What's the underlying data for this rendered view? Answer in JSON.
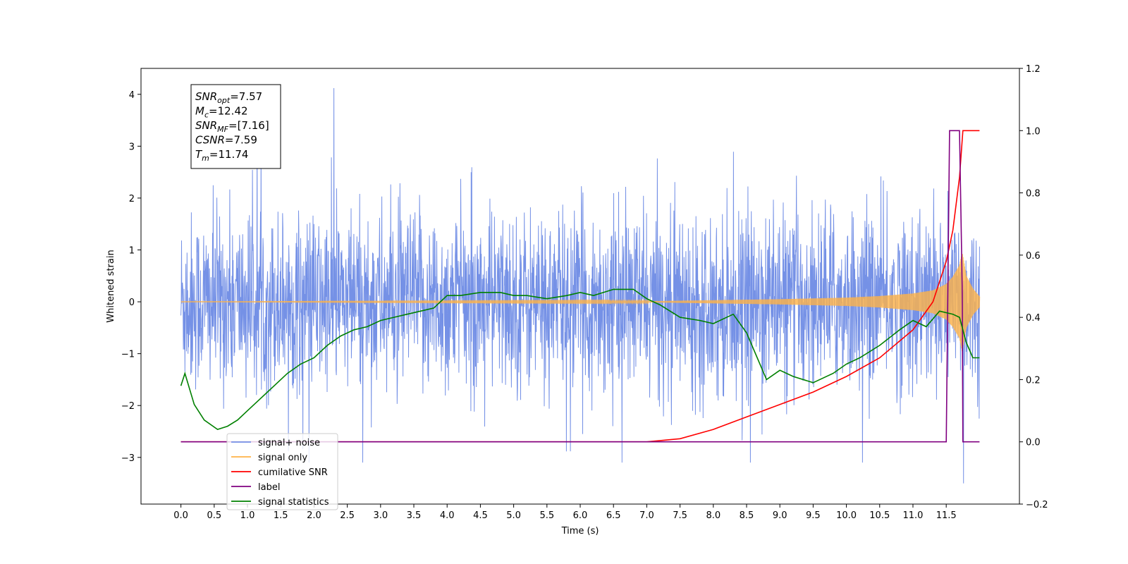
{
  "chart_data": {
    "type": "line",
    "xlabel": "Time (s)",
    "ylabel": "Whitened strain",
    "x_ticks": [
      "0.0",
      "0.5",
      "1.0",
      "1.5",
      "2.0",
      "2.5",
      "3.0",
      "3.5",
      "4.0",
      "4.5",
      "5.0",
      "5.5",
      "6.0",
      "6.5",
      "7.0",
      "7.5",
      "8.0",
      "8.5",
      "9.0",
      "9.5",
      "10.0",
      "10.5",
      "11.0",
      "11.5"
    ],
    "y_ticks": [
      "−3",
      "−2",
      "−1",
      "0",
      "1",
      "2",
      "3",
      "4"
    ],
    "y2_ticks": [
      "−0.2",
      "0.0",
      "0.2",
      "0.4",
      "0.6",
      "0.8",
      "1.0",
      "1.2"
    ],
    "xlim": [
      -0.6,
      12.6
    ],
    "ylim": [
      -3.9,
      4.5
    ],
    "y2lim": [
      -0.2,
      1.2
    ],
    "grid": false,
    "legend_position": "lower-left",
    "stats_box": {
      "lines": [
        {
          "sym": "SNR",
          "sub": "opt",
          "val": "=7.57"
        },
        {
          "sym": "M",
          "sub": "c",
          "val": "=12.42"
        },
        {
          "sym": "SNR",
          "sub": "MF",
          "val": "=[7.16]"
        },
        {
          "sym": "CSNR",
          "sub": "",
          "val": "=7.59"
        },
        {
          "sym": "T",
          "sub": "m",
          "val": "=11.74"
        }
      ]
    },
    "series": [
      {
        "name": "signal+ noise",
        "color": "#7591e6",
        "axis": "left",
        "kind": "noise",
        "x_range": [
          0,
          12.0
        ],
        "typical_amplitude": [
          -1.5,
          1.4
        ],
        "peak_max": 4.12,
        "peak_min": -3.5
      },
      {
        "name": "signal only",
        "color": "#ffb347",
        "axis": "left",
        "kind": "chirp",
        "x_range": [
          0,
          12.0
        ],
        "envelope": {
          "x": [
            0,
            7.0,
            8.0,
            9.0,
            10.0,
            10.5,
            11.0,
            11.3,
            11.5,
            11.6,
            11.7,
            11.74,
            11.8,
            11.9,
            12.0
          ],
          "y": [
            0.0,
            0.01,
            0.03,
            0.05,
            0.08,
            0.11,
            0.16,
            0.22,
            0.34,
            0.48,
            0.7,
            0.95,
            0.5,
            0.25,
            0.1
          ]
        }
      },
      {
        "name": "cumilative SNR",
        "color": "#ff0000",
        "axis": "right",
        "x": [
          0,
          7.0,
          7.5,
          8.0,
          8.5,
          9.0,
          9.5,
          10.0,
          10.5,
          11.0,
          11.3,
          11.5,
          11.6,
          11.7,
          11.75,
          11.8,
          12.0
        ],
        "y": [
          0.0,
          0.0,
          0.01,
          0.04,
          0.08,
          0.12,
          0.16,
          0.21,
          0.27,
          0.36,
          0.45,
          0.58,
          0.68,
          0.85,
          1.0,
          1.0,
          1.0
        ]
      },
      {
        "name": "label",
        "color": "#800080",
        "axis": "right",
        "x": [
          0,
          11.5,
          11.55,
          11.7,
          11.74,
          11.75,
          12.0
        ],
        "y": [
          0.0,
          0.0,
          1.0,
          1.0,
          0.5,
          0.0,
          0.0
        ]
      },
      {
        "name": "signal statistics",
        "color": "#008000",
        "axis": "right",
        "x": [
          0.0,
          0.06,
          0.2,
          0.35,
          0.55,
          0.7,
          0.85,
          1.0,
          1.2,
          1.4,
          1.6,
          1.8,
          2.0,
          2.2,
          2.4,
          2.6,
          2.8,
          3.0,
          3.2,
          3.4,
          3.6,
          3.8,
          4.0,
          4.2,
          4.5,
          4.8,
          5.0,
          5.2,
          5.5,
          5.8,
          6.0,
          6.2,
          6.5,
          6.8,
          7.0,
          7.2,
          7.5,
          7.8,
          8.0,
          8.3,
          8.5,
          8.8,
          9.0,
          9.2,
          9.5,
          9.8,
          10.0,
          10.2,
          10.5,
          10.8,
          11.0,
          11.2,
          11.4,
          11.6,
          11.7,
          11.8,
          11.9,
          12.0
        ],
        "y": [
          0.18,
          0.22,
          0.12,
          0.07,
          0.04,
          0.05,
          0.07,
          0.1,
          0.14,
          0.18,
          0.22,
          0.25,
          0.27,
          0.31,
          0.34,
          0.36,
          0.37,
          0.39,
          0.4,
          0.41,
          0.42,
          0.43,
          0.47,
          0.47,
          0.48,
          0.48,
          0.47,
          0.47,
          0.46,
          0.47,
          0.48,
          0.47,
          0.49,
          0.49,
          0.46,
          0.44,
          0.4,
          0.39,
          0.38,
          0.41,
          0.35,
          0.2,
          0.23,
          0.21,
          0.19,
          0.22,
          0.25,
          0.27,
          0.31,
          0.36,
          0.39,
          0.37,
          0.42,
          0.41,
          0.4,
          0.32,
          0.27,
          0.27
        ]
      }
    ]
  }
}
